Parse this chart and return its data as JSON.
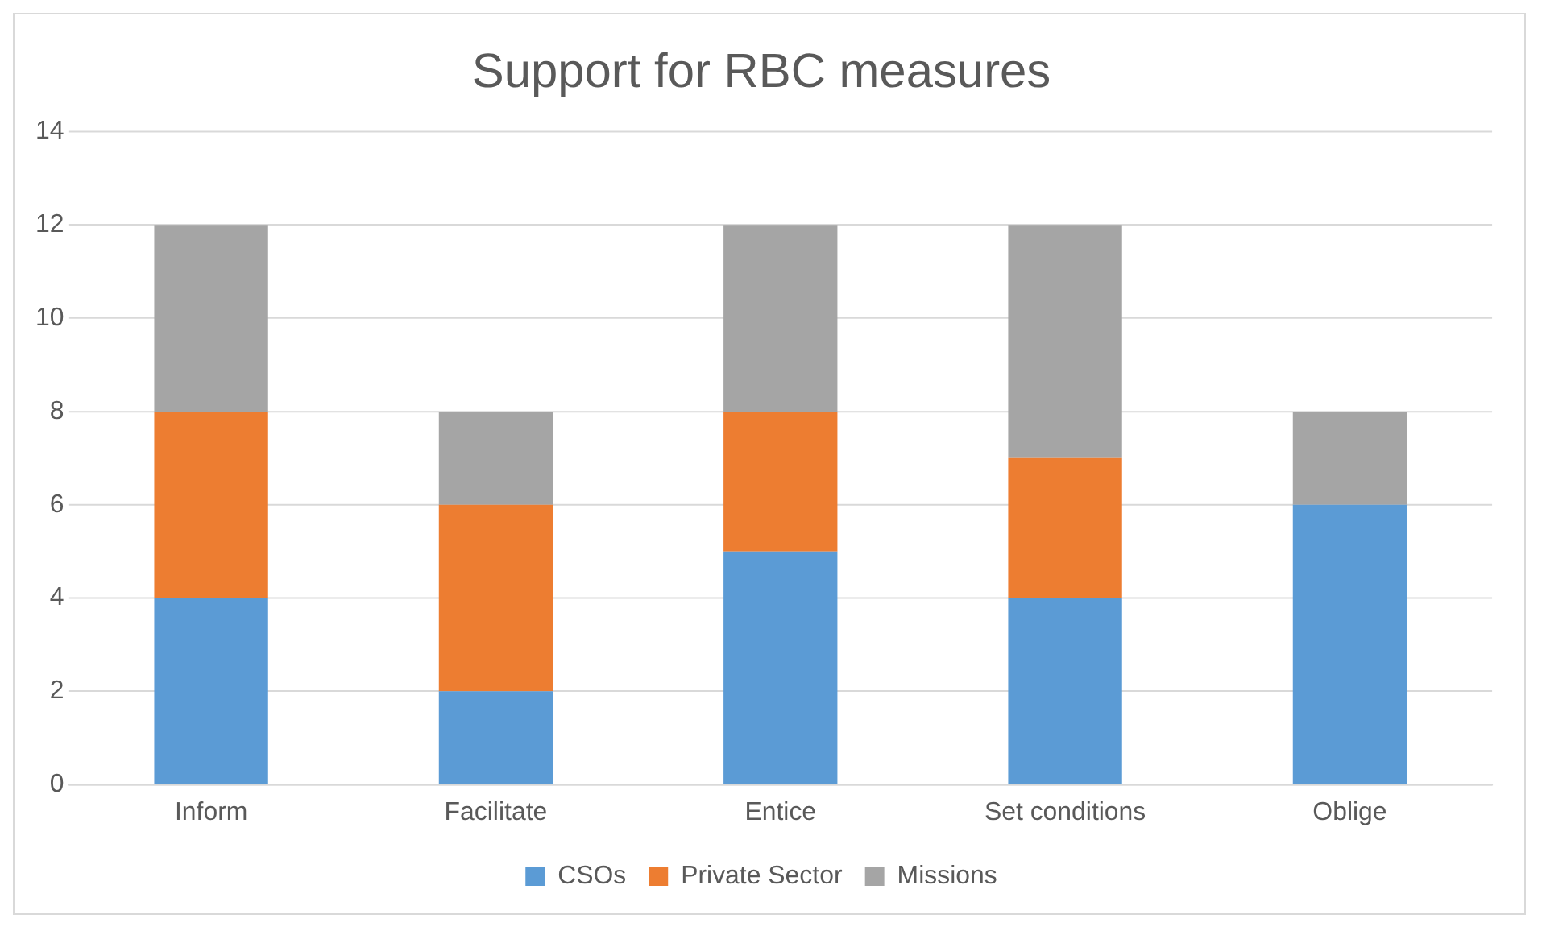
{
  "chart_data": {
    "type": "bar",
    "title": "Support for RBC measures",
    "categories": [
      "Inform",
      "Facilitate",
      "Entice",
      "Set conditions",
      "Oblige"
    ],
    "stacked": true,
    "series": [
      {
        "name": "CSOs",
        "color": "#5b9bd5",
        "values": [
          4,
          2,
          5,
          4,
          6
        ]
      },
      {
        "name": "Private Sector",
        "color": "#ed7d31",
        "values": [
          4,
          4,
          3,
          3,
          0
        ]
      },
      {
        "name": "Missions",
        "color": "#a5a5a5",
        "values": [
          4,
          2,
          4,
          5,
          2
        ]
      }
    ],
    "ylim": [
      0,
      14
    ],
    "yticks": [
      0,
      2,
      4,
      6,
      8,
      10,
      12,
      14
    ],
    "grid": "y",
    "legend": "bottom"
  }
}
